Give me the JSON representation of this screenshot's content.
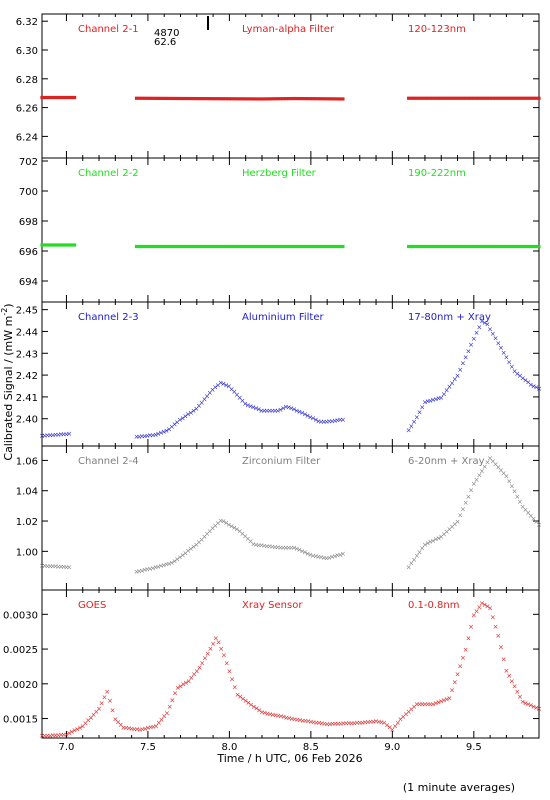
{
  "xaxis": {
    "label": "Time / h UTC, 06 Feb 2026",
    "ticks": [
      "7.0",
      "7.5",
      "8.0",
      "8.5",
      "9.0",
      "9.5"
    ],
    "range": [
      6.85,
      9.9
    ]
  },
  "ylabel": "Calibrated Signal / (mW m",
  "ylabel_sup": "-2",
  "ylabel_close": ")",
  "footnote": "(1 minute averages)",
  "marker": {
    "time": 7.9,
    "label1": "4870",
    "label2": "62.6"
  },
  "chart_data": [
    {
      "type": "scatter",
      "name": "Channel 2-1",
      "filter": "Lyman-alpha Filter",
      "band": "120-123nm",
      "color": "#dd2222",
      "ylim": [
        6.225,
        6.325
      ],
      "yticks": [
        "6.24",
        "6.26",
        "6.28",
        "6.30",
        "6.32"
      ],
      "ytick_values": [
        6.24,
        6.26,
        6.28,
        6.3,
        6.32
      ],
      "segments": [
        {
          "x": [
            6.85,
            7.05
          ],
          "y": [
            6.267,
            6.267
          ]
        },
        {
          "x": [
            7.43,
            8.2,
            8.4,
            8.7
          ],
          "y": [
            6.2665,
            6.266,
            6.2663,
            6.266
          ]
        },
        {
          "x": [
            9.1,
            9.9
          ],
          "y": [
            6.2665,
            6.2665
          ]
        }
      ]
    },
    {
      "type": "scatter",
      "name": "Channel 2-2",
      "filter": "Herzberg Filter",
      "band": "190-222nm",
      "color": "#22dd22",
      "ylim": [
        692.6,
        702.2
      ],
      "yticks": [
        "694",
        "696",
        "698",
        "700",
        "702"
      ],
      "ytick_values": [
        694,
        696,
        698,
        700,
        702
      ],
      "segments": [
        {
          "x": [
            6.85,
            7.05
          ],
          "y": [
            696.4,
            696.4
          ]
        },
        {
          "x": [
            7.43,
            8.7
          ],
          "y": [
            696.3,
            696.3
          ]
        },
        {
          "x": [
            9.1,
            9.9
          ],
          "y": [
            696.3,
            696.3
          ]
        }
      ]
    },
    {
      "type": "scatter",
      "name": "Channel 2-3",
      "filter": "Aluminium Filter",
      "band": "17-80nm + Xray",
      "color": "#2222cc",
      "ylim": [
        2.3875,
        2.4535
      ],
      "yticks": [
        "2.40",
        "2.41",
        "2.42",
        "2.43",
        "2.44",
        "2.45"
      ],
      "ytick_values": [
        2.4,
        2.41,
        2.42,
        2.43,
        2.44,
        2.45
      ],
      "segments": [
        {
          "x": [
            6.85,
            7.03
          ],
          "y": [
            2.3925,
            2.3935
          ]
        },
        {
          "x": [
            7.43,
            7.55,
            7.62,
            7.7,
            7.8,
            7.9,
            7.95,
            8.0,
            8.1,
            8.2,
            8.3,
            8.35,
            8.45,
            8.55,
            8.6,
            8.7
          ],
          "y": [
            2.392,
            2.393,
            2.395,
            2.4,
            2.405,
            2.414,
            2.417,
            2.415,
            2.407,
            2.404,
            2.404,
            2.406,
            2.403,
            2.399,
            2.399,
            2.4
          ]
        },
        {
          "x": [
            9.1,
            9.15,
            9.2,
            9.3,
            9.4,
            9.5,
            9.55,
            9.58,
            9.65,
            9.75,
            9.85,
            9.9
          ],
          "y": [
            2.395,
            2.401,
            2.408,
            2.41,
            2.42,
            2.437,
            2.445,
            2.444,
            2.435,
            2.422,
            2.416,
            2.414
          ]
        }
      ]
    },
    {
      "type": "scatter",
      "name": "Channel 2-4",
      "filter": "Zirconium Filter",
      "band": "6-20nm + Xray",
      "color": "#808080",
      "ylim": [
        0.9745,
        1.0695
      ],
      "yticks": [
        "1.00",
        "1.02",
        "1.04",
        "1.06"
      ],
      "ytick_values": [
        1.0,
        1.02,
        1.04,
        1.06
      ],
      "segments": [
        {
          "x": [
            6.85,
            7.03
          ],
          "y": [
            0.991,
            0.99
          ]
        },
        {
          "x": [
            7.43,
            7.55,
            7.65,
            7.8,
            7.9,
            7.95,
            8.05,
            8.15,
            8.3,
            8.4,
            8.5,
            8.6,
            8.7
          ],
          "y": [
            0.987,
            0.99,
            0.993,
            1.005,
            1.016,
            1.021,
            1.015,
            1.005,
            1.003,
            1.003,
            0.998,
            0.996,
            0.999
          ]
        },
        {
          "x": [
            9.1,
            9.2,
            9.3,
            9.4,
            9.5,
            9.6,
            9.7,
            9.8,
            9.9
          ],
          "y": [
            0.99,
            1.005,
            1.01,
            1.02,
            1.045,
            1.062,
            1.05,
            1.03,
            1.018
          ]
        }
      ]
    },
    {
      "type": "scatter",
      "name": "GOES",
      "filter": "Xray Sensor",
      "band": "0.1-0.8nm",
      "color": "#dd2222",
      "ylim": [
        0.00122,
        0.00335
      ],
      "yticks": [
        "0.0015",
        "0.0020",
        "0.0025",
        "0.0030"
      ],
      "ytick_values": [
        0.0015,
        0.002,
        0.0025,
        0.003
      ],
      "segments": [
        {
          "x": [
            6.85,
            7.0,
            7.1,
            7.2,
            7.25,
            7.3,
            7.35,
            7.45,
            7.55,
            7.62,
            7.68,
            7.75,
            7.82,
            7.88,
            7.92,
            7.97,
            8.05,
            8.2,
            8.4,
            8.6,
            8.8,
            8.9,
            8.95,
            9.0,
            9.05,
            9.15,
            9.25,
            9.35,
            9.45,
            9.5,
            9.55,
            9.6,
            9.65,
            9.7,
            9.8,
            9.9
          ],
          "y": [
            0.00126,
            0.00128,
            0.0014,
            0.00165,
            0.0019,
            0.0015,
            0.00138,
            0.00135,
            0.0014,
            0.0016,
            0.00195,
            0.00205,
            0.00225,
            0.0025,
            0.00268,
            0.0024,
            0.00185,
            0.0016,
            0.0015,
            0.00143,
            0.00145,
            0.00147,
            0.00145,
            0.00135,
            0.0015,
            0.00172,
            0.00172,
            0.0018,
            0.0025,
            0.003,
            0.00317,
            0.0031,
            0.0027,
            0.0022,
            0.00175,
            0.00165
          ]
        }
      ]
    }
  ]
}
